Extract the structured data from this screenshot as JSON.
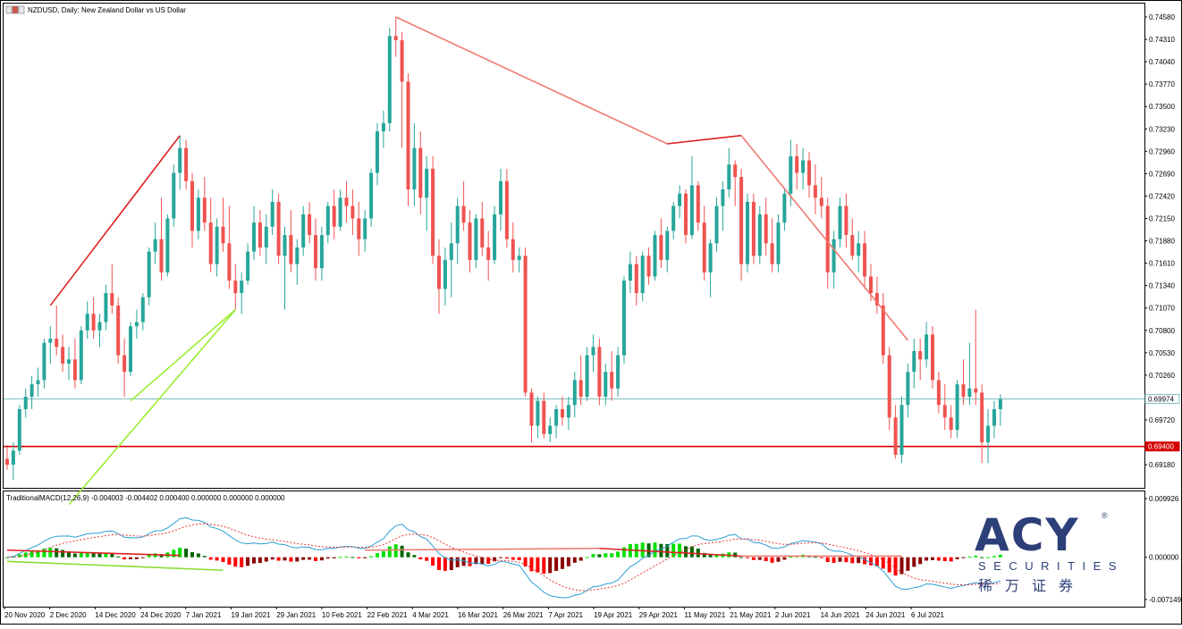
{
  "window": {
    "title": "NZDUSD, Daily:  New Zealand Dollar vs US Dollar"
  },
  "chart_data": {
    "type": "candlestick",
    "symbol": "NZDUSD",
    "timeframe": "Daily",
    "price_axis": {
      "min": 0.69149,
      "max": 0.7458,
      "ticks": [
        0.7458,
        0.7431,
        0.7404,
        0.7377,
        0.735,
        0.7323,
        0.7296,
        0.7269,
        0.7242,
        0.7215,
        0.7188,
        0.7161,
        0.7134,
        0.7107,
        0.708,
        0.7053,
        0.7026,
        0.6972,
        0.6918
      ]
    },
    "date_axis": {
      "labels": [
        "20 Nov 2020",
        "2 Dec 2020",
        "14 Dec 2020",
        "24 Dec 2020",
        "7 Jan 2021",
        "19 Jan 2021",
        "29 Jan 2021",
        "10 Feb 2021",
        "22 Feb 2021",
        "4 Mar 2021",
        "16 Mar 2021",
        "26 Mar 2021",
        "7 Apr 2021",
        "19 Apr 2021",
        "29 Apr 2021",
        "11 May 2021",
        "21 May 2021",
        "2 Jun 2021",
        "14 Jun 2021",
        "24 Jun 2021",
        "6 Jul 2021"
      ]
    },
    "candles": [
      [
        0.6925,
        0.694,
        0.6912,
        0.6918
      ],
      [
        0.6918,
        0.6945,
        0.69,
        0.6935
      ],
      [
        0.6935,
        0.699,
        0.693,
        0.6985
      ],
      [
        0.6985,
        0.701,
        0.6975,
        0.7
      ],
      [
        0.7,
        0.7025,
        0.6985,
        0.7015
      ],
      [
        0.7015,
        0.7035,
        0.7,
        0.702
      ],
      [
        0.702,
        0.707,
        0.701,
        0.7065
      ],
      [
        0.7065,
        0.7085,
        0.704,
        0.707
      ],
      [
        0.707,
        0.711,
        0.705,
        0.706
      ],
      [
        0.706,
        0.7075,
        0.703,
        0.704
      ],
      [
        0.704,
        0.706,
        0.702,
        0.7045
      ],
      [
        0.7045,
        0.707,
        0.701,
        0.702
      ],
      [
        0.702,
        0.7085,
        0.7015,
        0.708
      ],
      [
        0.708,
        0.7115,
        0.707,
        0.71
      ],
      [
        0.71,
        0.712,
        0.707,
        0.708
      ],
      [
        0.708,
        0.71,
        0.706,
        0.709
      ],
      [
        0.709,
        0.7135,
        0.708,
        0.7125
      ],
      [
        0.7125,
        0.716,
        0.71,
        0.711
      ],
      [
        0.711,
        0.712,
        0.704,
        0.705
      ],
      [
        0.705,
        0.707,
        0.7,
        0.703
      ],
      [
        0.703,
        0.709,
        0.7025,
        0.7085
      ],
      [
        0.7085,
        0.7105,
        0.707,
        0.709
      ],
      [
        0.709,
        0.7125,
        0.708,
        0.712
      ],
      [
        0.712,
        0.718,
        0.711,
        0.7175
      ],
      [
        0.7175,
        0.721,
        0.716,
        0.719
      ],
      [
        0.719,
        0.724,
        0.714,
        0.715
      ],
      [
        0.715,
        0.722,
        0.7145,
        0.7215
      ],
      [
        0.7215,
        0.728,
        0.7205,
        0.727
      ],
      [
        0.727,
        0.7315,
        0.725,
        0.73
      ],
      [
        0.73,
        0.731,
        0.725,
        0.726
      ],
      [
        0.726,
        0.727,
        0.718,
        0.72
      ],
      [
        0.72,
        0.725,
        0.719,
        0.724
      ],
      [
        0.724,
        0.7265,
        0.72,
        0.721
      ],
      [
        0.721,
        0.724,
        0.715,
        0.716
      ],
      [
        0.716,
        0.7215,
        0.7145,
        0.7205
      ],
      [
        0.7205,
        0.724,
        0.7175,
        0.7185
      ],
      [
        0.7185,
        0.723,
        0.713,
        0.714
      ],
      [
        0.714,
        0.716,
        0.7105,
        0.7125
      ],
      [
        0.7125,
        0.715,
        0.71,
        0.714
      ],
      [
        0.714,
        0.7185,
        0.7135,
        0.7175
      ],
      [
        0.7175,
        0.723,
        0.7165,
        0.721
      ],
      [
        0.721,
        0.7225,
        0.717,
        0.718
      ],
      [
        0.718,
        0.722,
        0.716,
        0.7205
      ],
      [
        0.7205,
        0.725,
        0.7195,
        0.7235
      ],
      [
        0.7235,
        0.7245,
        0.716,
        0.717
      ],
      [
        0.717,
        0.7205,
        0.7105,
        0.7195
      ],
      [
        0.7195,
        0.7225,
        0.715,
        0.716
      ],
      [
        0.716,
        0.719,
        0.7135,
        0.718
      ],
      [
        0.718,
        0.723,
        0.717,
        0.722
      ],
      [
        0.722,
        0.7235,
        0.7185,
        0.7195
      ],
      [
        0.7195,
        0.7215,
        0.714,
        0.7155
      ],
      [
        0.7155,
        0.7205,
        0.714,
        0.7195
      ],
      [
        0.7195,
        0.7235,
        0.7185,
        0.723
      ],
      [
        0.723,
        0.725,
        0.719,
        0.7205
      ],
      [
        0.7205,
        0.725,
        0.72,
        0.724
      ],
      [
        0.724,
        0.726,
        0.721,
        0.723
      ],
      [
        0.723,
        0.725,
        0.7195,
        0.7215
      ],
      [
        0.7215,
        0.7235,
        0.717,
        0.719
      ],
      [
        0.719,
        0.7225,
        0.7175,
        0.7215
      ],
      [
        0.7215,
        0.7275,
        0.7205,
        0.727
      ],
      [
        0.727,
        0.733,
        0.7255,
        0.732
      ],
      [
        0.732,
        0.7345,
        0.73,
        0.733
      ],
      [
        0.733,
        0.7445,
        0.732,
        0.7435
      ],
      [
        0.7435,
        0.7458,
        0.741,
        0.743
      ],
      [
        0.743,
        0.744,
        0.73,
        0.738
      ],
      [
        0.738,
        0.739,
        0.723,
        0.725
      ],
      [
        0.725,
        0.733,
        0.723,
        0.73
      ],
      [
        0.73,
        0.732,
        0.722,
        0.724
      ],
      [
        0.724,
        0.729,
        0.72,
        0.7275
      ],
      [
        0.7275,
        0.729,
        0.716,
        0.717
      ],
      [
        0.717,
        0.719,
        0.71,
        0.713
      ],
      [
        0.713,
        0.718,
        0.711,
        0.7165
      ],
      [
        0.7165,
        0.721,
        0.712,
        0.7185
      ],
      [
        0.7185,
        0.724,
        0.716,
        0.723
      ],
      [
        0.723,
        0.726,
        0.72,
        0.721
      ],
      [
        0.721,
        0.7225,
        0.715,
        0.7165
      ],
      [
        0.7165,
        0.722,
        0.7155,
        0.7215
      ],
      [
        0.7215,
        0.7235,
        0.717,
        0.718
      ],
      [
        0.718,
        0.72,
        0.714,
        0.7165
      ],
      [
        0.7165,
        0.723,
        0.716,
        0.722
      ],
      [
        0.722,
        0.7275,
        0.72,
        0.726
      ],
      [
        0.726,
        0.7275,
        0.718,
        0.719
      ],
      [
        0.719,
        0.721,
        0.715,
        0.7165
      ],
      [
        0.7165,
        0.718,
        0.715,
        0.717
      ],
      [
        0.717,
        0.718,
        0.7,
        0.7005
      ],
      [
        0.7005,
        0.701,
        0.6945,
        0.6965
      ],
      [
        0.6965,
        0.7,
        0.695,
        0.6995
      ],
      [
        0.6995,
        0.7005,
        0.695,
        0.6955
      ],
      [
        0.6955,
        0.6975,
        0.6945,
        0.6965
      ],
      [
        0.6965,
        0.699,
        0.695,
        0.6985
      ],
      [
        0.6985,
        0.7,
        0.6965,
        0.6975
      ],
      [
        0.6975,
        0.7,
        0.696,
        0.699
      ],
      [
        0.699,
        0.703,
        0.6975,
        0.702
      ],
      [
        0.702,
        0.705,
        0.699,
        0.7
      ],
      [
        0.7,
        0.706,
        0.6995,
        0.705
      ],
      [
        0.705,
        0.7075,
        0.703,
        0.706
      ],
      [
        0.706,
        0.707,
        0.699,
        0.7
      ],
      [
        0.7,
        0.704,
        0.699,
        0.703
      ],
      [
        0.703,
        0.7055,
        0.6995,
        0.701
      ],
      [
        0.701,
        0.706,
        0.7,
        0.705
      ],
      [
        0.705,
        0.7145,
        0.704,
        0.714
      ],
      [
        0.714,
        0.7175,
        0.7125,
        0.716
      ],
      [
        0.716,
        0.717,
        0.711,
        0.7125
      ],
      [
        0.7125,
        0.7175,
        0.7115,
        0.717
      ],
      [
        0.717,
        0.718,
        0.7135,
        0.7145
      ],
      [
        0.7145,
        0.72,
        0.714,
        0.7195
      ],
      [
        0.7195,
        0.7215,
        0.7155,
        0.7165
      ],
      [
        0.7165,
        0.7205,
        0.715,
        0.72
      ],
      [
        0.72,
        0.7235,
        0.719,
        0.723
      ],
      [
        0.723,
        0.7255,
        0.7215,
        0.7245
      ],
      [
        0.7245,
        0.725,
        0.7185,
        0.7195
      ],
      [
        0.7195,
        0.729,
        0.719,
        0.7255
      ],
      [
        0.7255,
        0.726,
        0.72,
        0.721
      ],
      [
        0.721,
        0.723,
        0.714,
        0.715
      ],
      [
        0.715,
        0.719,
        0.712,
        0.7185
      ],
      [
        0.7185,
        0.724,
        0.7175,
        0.723
      ],
      [
        0.723,
        0.726,
        0.72,
        0.725
      ],
      [
        0.725,
        0.73,
        0.724,
        0.728
      ],
      [
        0.728,
        0.7285,
        0.723,
        0.7265
      ],
      [
        0.7265,
        0.7275,
        0.714,
        0.716
      ],
      [
        0.716,
        0.7245,
        0.715,
        0.7235
      ],
      [
        0.7235,
        0.7245,
        0.716,
        0.717
      ],
      [
        0.717,
        0.723,
        0.716,
        0.722
      ],
      [
        0.722,
        0.724,
        0.717,
        0.7185
      ],
      [
        0.7185,
        0.7215,
        0.715,
        0.716
      ],
      [
        0.716,
        0.722,
        0.715,
        0.721
      ],
      [
        0.721,
        0.725,
        0.72,
        0.7245
      ],
      [
        0.7245,
        0.731,
        0.723,
        0.729
      ],
      [
        0.729,
        0.7305,
        0.725,
        0.727
      ],
      [
        0.727,
        0.73,
        0.725,
        0.7285
      ],
      [
        0.7285,
        0.7295,
        0.724,
        0.7255
      ],
      [
        0.7255,
        0.728,
        0.722,
        0.724
      ],
      [
        0.724,
        0.7265,
        0.7215,
        0.723
      ],
      [
        0.723,
        0.724,
        0.713,
        0.715
      ],
      [
        0.715,
        0.72,
        0.713,
        0.719
      ],
      [
        0.719,
        0.724,
        0.718,
        0.723
      ],
      [
        0.723,
        0.7245,
        0.718,
        0.7195
      ],
      [
        0.7195,
        0.7215,
        0.7165,
        0.717
      ],
      [
        0.717,
        0.72,
        0.715,
        0.7185
      ],
      [
        0.7185,
        0.72,
        0.713,
        0.7145
      ],
      [
        0.7145,
        0.716,
        0.7115,
        0.7125
      ],
      [
        0.7125,
        0.7145,
        0.71,
        0.711
      ],
      [
        0.711,
        0.7125,
        0.704,
        0.705
      ],
      [
        0.705,
        0.706,
        0.696,
        0.6975
      ],
      [
        0.6975,
        0.699,
        0.6925,
        0.693
      ],
      [
        0.693,
        0.7,
        0.692,
        0.699
      ],
      [
        0.699,
        0.704,
        0.6975,
        0.703
      ],
      [
        0.703,
        0.707,
        0.701,
        0.7055
      ],
      [
        0.7055,
        0.707,
        0.702,
        0.7045
      ],
      [
        0.7045,
        0.709,
        0.7035,
        0.7075
      ],
      [
        0.7075,
        0.7085,
        0.701,
        0.702
      ],
      [
        0.702,
        0.703,
        0.698,
        0.699
      ],
      [
        0.699,
        0.7015,
        0.696,
        0.6975
      ],
      [
        0.6975,
        0.699,
        0.695,
        0.696
      ],
      [
        0.696,
        0.702,
        0.695,
        0.7015
      ],
      [
        0.7015,
        0.7045,
        0.699,
        0.7
      ],
      [
        0.7,
        0.7065,
        0.699,
        0.701
      ],
      [
        0.701,
        0.7105,
        0.699,
        0.7005
      ],
      [
        0.7005,
        0.7015,
        0.692,
        0.6945
      ],
      [
        0.6945,
        0.6985,
        0.692,
        0.6965
      ],
      [
        0.6965,
        0.6995,
        0.695,
        0.6985
      ],
      [
        0.6985,
        0.7003,
        0.6965,
        0.6997
      ]
    ],
    "bullish_color": "#26a69a",
    "bearish_color": "#ef5350",
    "horizontal_lines": [
      {
        "name": "current-price",
        "price": 0.69974,
        "label": "0.69974",
        "color": "#7fbfbf"
      },
      {
        "name": "support-level",
        "price": 0.694,
        "label": "0.69400",
        "color": "#d40000"
      }
    ],
    "trend_lines": [
      {
        "color": "#dd2222",
        "from": [
          7,
          0.711
        ],
        "to": [
          28,
          0.7315
        ]
      },
      {
        "color": "#99ee33",
        "from": [
          10,
          0.687
        ],
        "to": [
          37,
          0.7105
        ]
      },
      {
        "color": "#99ee33",
        "from": [
          20,
          0.6995
        ],
        "to": [
          37,
          0.7105
        ]
      },
      {
        "color": "#ef7a72",
        "from": [
          63,
          0.7458
        ],
        "to": [
          107,
          0.7305
        ]
      },
      {
        "color": "#dd2222",
        "from": [
          107,
          0.7305
        ],
        "to": [
          119,
          0.7315
        ]
      },
      {
        "color": "#ef7a72",
        "from": [
          119,
          0.7315
        ],
        "to": [
          146,
          0.7068
        ]
      }
    ],
    "indicator": {
      "label": "TraditionalMACD(12,26,9) -0.004003 -0.004402 0.000400 0.000000 0.000000 0.000000",
      "axis_ticks": [
        0.009926,
        0.0,
        -0.007149
      ],
      "axis_labels": [
        "0.009926",
        "0.000000",
        "-0.007149"
      ],
      "min": -0.007149,
      "max": 0.009926,
      "macd_color": "#2a9fd6",
      "signal_color": "#e53935",
      "trend_lines": [
        {
          "color": "#dd2222",
          "from": [
            0,
            0.0012
          ],
          "to": [
            28,
            0.0003
          ]
        },
        {
          "color": "#88dd33",
          "from": [
            0,
            -0.0007
          ],
          "to": [
            35,
            -0.0022
          ]
        },
        {
          "color": "#ef7a72",
          "from": [
            58,
            0.0012
          ],
          "to": [
            96,
            0.0015
          ]
        },
        {
          "color": "#dd2222",
          "from": [
            96,
            0.0015
          ],
          "to": [
            119,
            0.0002
          ]
        },
        {
          "color": "#ef7a72",
          "from": [
            119,
            0.0002
          ],
          "to": [
            145,
            0.0002
          ]
        }
      ]
    }
  },
  "watermark": {
    "brand": "ACY",
    "reg": "®",
    "sub": "SECURITIES",
    "cn": "稀万证券"
  }
}
